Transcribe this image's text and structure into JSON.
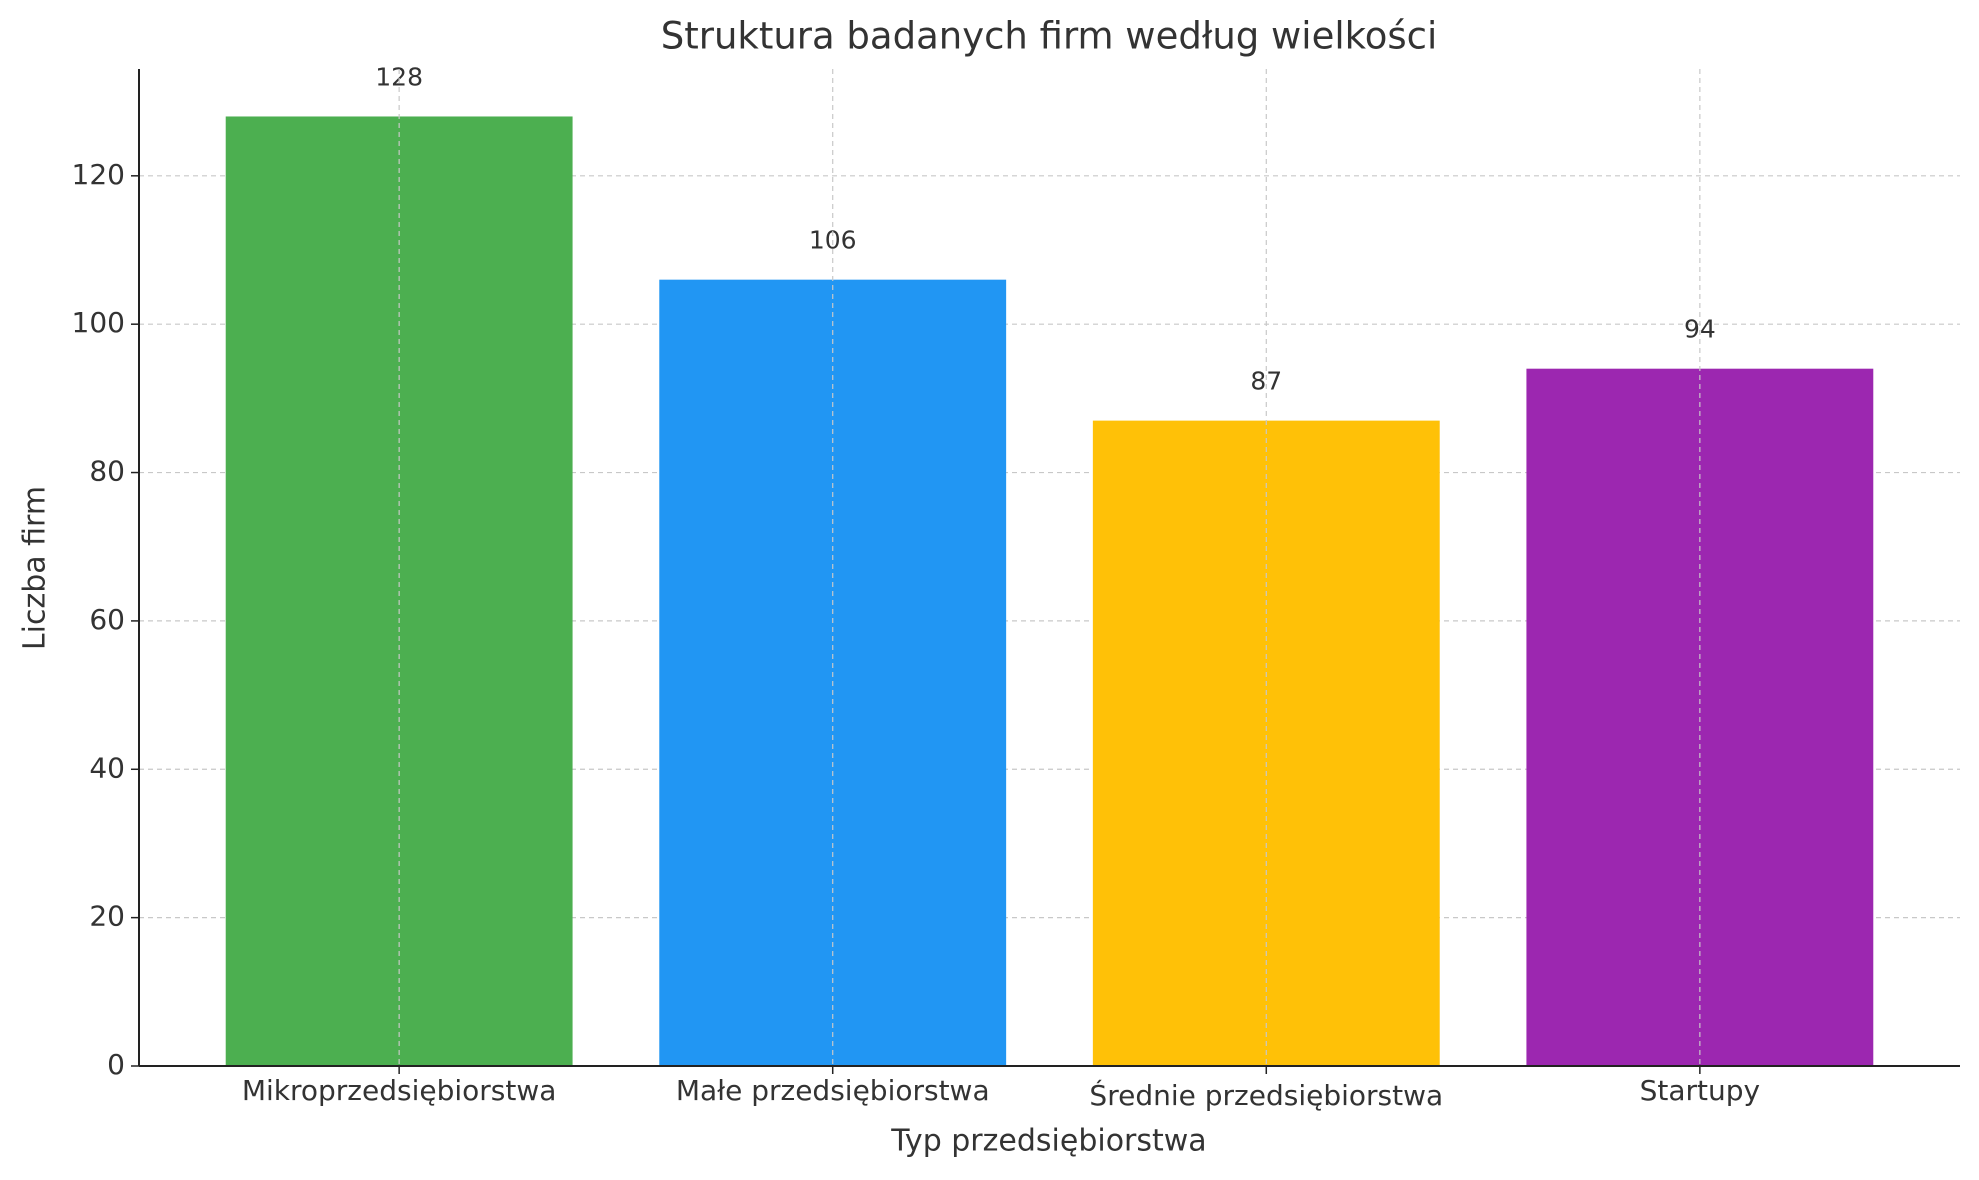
{
  "chart_data": {
    "type": "bar",
    "title": "Struktura badanych firm według wielkości",
    "x_label": "Typ przedsiębiorstwa",
    "y_label": "Liczba firm",
    "categories": [
      "Mikroprzedsiębiorstwa",
      "Małe przedsiębiorstwa",
      "Średnie przedsiębiorstwa",
      "Startupy"
    ],
    "values": [
      128,
      106,
      87,
      94
    ],
    "colors": [
      "#4caf50",
      "#2196f3",
      "#ffc107",
      "#9c27b0"
    ],
    "ylim": [
      0,
      134.4
    ],
    "yticks": [
      0,
      20,
      40,
      60,
      80,
      100,
      120
    ],
    "grid": true
  }
}
